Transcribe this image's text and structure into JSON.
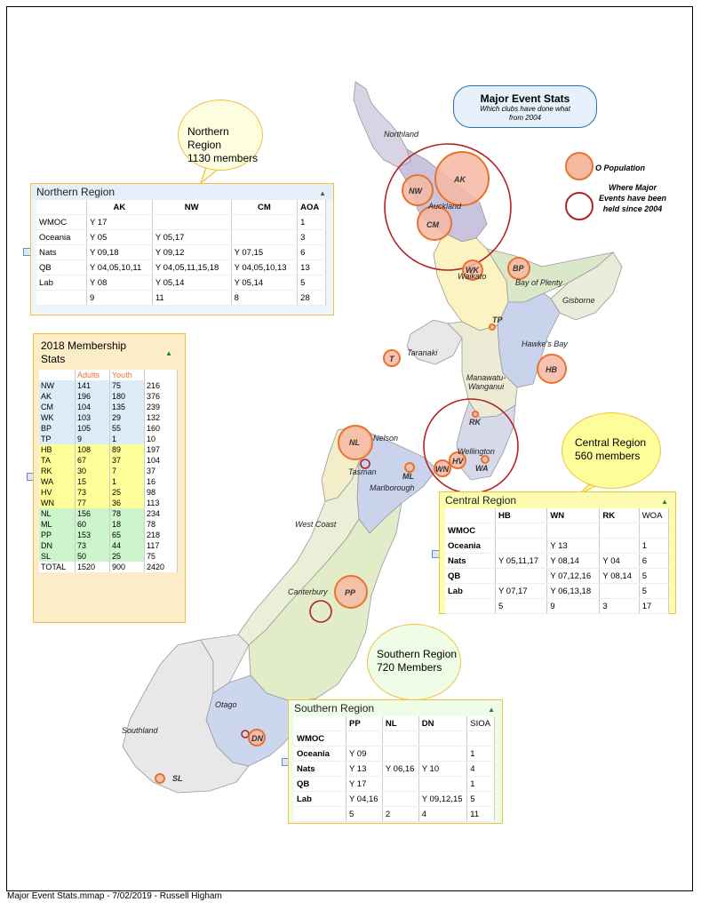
{
  "title_box": {
    "title": "Major Event Stats",
    "subtitle1": "Which clubs have done what",
    "subtitle2": "from 2004"
  },
  "legend": {
    "population": "O Population",
    "events": "Where Major Events have been held since 2004"
  },
  "footer": "Major Event Stats.mmap - 7/02/2019 - Russell Higham",
  "region_labels": [
    "Northland",
    "Auckland",
    "Waikato",
    "Bay of Plenty",
    "Gisborne",
    "Taranaki",
    "Hawke's Bay",
    "Manawatu-Wanganui",
    "Wellington",
    "Nelson",
    "Tasman",
    "Marlborough",
    "West Coast",
    "Canterbury",
    "Otago",
    "Southland"
  ],
  "clubs": [
    "AK",
    "NW",
    "CM",
    "WK",
    "BP",
    "TP",
    "T",
    "HB",
    "RK",
    "WN",
    "HV",
    "WA",
    "NL",
    "ML",
    "PP",
    "DN",
    "SL"
  ],
  "northern_bubble": {
    "line1": "Northern  Region",
    "line2": "1130 members"
  },
  "central_bubble": {
    "line1": "Central Region",
    "line2": "560 members"
  },
  "southern_bubble": {
    "line1": "Southern  Region",
    "line2": "720 Members"
  },
  "northern": {
    "title": "Northern Region",
    "headers": [
      "",
      "AK",
      "NW",
      "CM",
      "AOA"
    ],
    "rows": [
      [
        "WMOC",
        "Y 17",
        "",
        "",
        "1"
      ],
      [
        "Oceania",
        "Y 05",
        "Y 05,17",
        "",
        "3"
      ],
      [
        "Nats",
        "Y 09,18",
        "Y 09,12",
        "Y 07,15",
        "6"
      ],
      [
        "QB",
        "Y 04,05,10,11",
        "Y 04,05,11,15,18",
        "Y 04,05,10,13",
        "13"
      ],
      [
        "Lab",
        "Y 08",
        "Y 05,14",
        "Y 05,14",
        "5"
      ],
      [
        "",
        "9",
        "11",
        "8",
        "28"
      ]
    ]
  },
  "central": {
    "title": "Central Region",
    "headers": [
      "",
      "HB",
      "WN",
      "RK",
      "WOA"
    ],
    "rows": [
      [
        "WMOC",
        "",
        "",
        "",
        ""
      ],
      [
        "Oceania",
        "",
        "Y 13",
        "",
        "1"
      ],
      [
        "Nats",
        "Y 05,11,17",
        "Y 08,14",
        "Y 04",
        "6"
      ],
      [
        "QB",
        "",
        "Y 07,12,16",
        "Y 08,14",
        "5"
      ],
      [
        "Lab",
        "Y 07,17",
        "Y 06,13,18",
        "",
        "5"
      ],
      [
        "",
        "5",
        "9",
        "3",
        "17"
      ]
    ]
  },
  "southern": {
    "title": "Southern Region",
    "headers": [
      "",
      "PP",
      "NL",
      "DN",
      "SIOA"
    ],
    "rows": [
      [
        "WMOC",
        "",
        "",
        "",
        ""
      ],
      [
        "Oceania",
        "Y 09",
        "",
        "",
        "1"
      ],
      [
        "Nats",
        "Y 13",
        "Y 06,16",
        "Y 10",
        "4"
      ],
      [
        "QB",
        "Y 17",
        "",
        "",
        "1"
      ],
      [
        "Lab",
        "Y 04,16",
        "",
        "Y 09,12,15",
        "5"
      ],
      [
        "",
        "5",
        "2",
        "4",
        "11"
      ]
    ]
  },
  "membership": {
    "title1": "2018  Membership",
    "title2": "Stats",
    "col_adults": "Adults",
    "col_youth": "Youth",
    "rows": [
      [
        "NW",
        "141",
        "75",
        "216"
      ],
      [
        "AK",
        "196",
        "180",
        "376"
      ],
      [
        "CM",
        "104",
        "135",
        "239"
      ],
      [
        "WK",
        "103",
        "29",
        "132"
      ],
      [
        "BP",
        "105",
        "55",
        "160"
      ],
      [
        "TP",
        "9",
        "1",
        "10"
      ],
      [
        "HB",
        "108",
        "89",
        "197"
      ],
      [
        "TA",
        "67",
        "37",
        "104"
      ],
      [
        "RK",
        "30",
        "7",
        "37"
      ],
      [
        "WA",
        "15",
        "1",
        "16"
      ],
      [
        "HV",
        "73",
        "25",
        "98"
      ],
      [
        "WN",
        "77",
        "36",
        "113"
      ],
      [
        "NL",
        "156",
        "78",
        "234"
      ],
      [
        "ML",
        "60",
        "18",
        "78"
      ],
      [
        "PP",
        "153",
        "65",
        "218"
      ],
      [
        "DN",
        "73",
        "44",
        "117"
      ],
      [
        "SL",
        "50",
        "25",
        "75"
      ],
      [
        "TOTAL",
        "1520",
        "900",
        "2420"
      ]
    ],
    "colors": {
      "north": "#dcecf8",
      "central": "#ffff99",
      "south": "#ccf5cc"
    }
  },
  "colors": {
    "orange": "#e8732e",
    "pop_fill": "#f6b9a2",
    "event": "#b52025",
    "panel_border": "#f0c040"
  }
}
